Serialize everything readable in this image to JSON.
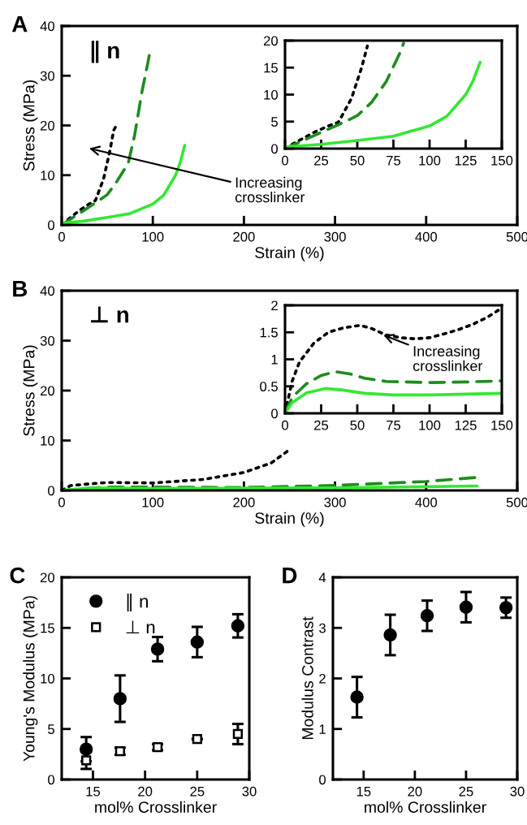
{
  "chart_data": [
    {
      "type": "line",
      "xlabel": "Strain (%)",
      "ylabel": "Stress (MPa)",
      "xlim": [
        0,
        500
      ],
      "ylim": [
        0,
        40
      ],
      "xticks": [
        0,
        100,
        200,
        300,
        400,
        500
      ],
      "yticks": [
        0,
        10,
        20,
        30,
        40
      ],
      "annotations": [
        "A",
        "∥ n",
        "Increasing\ncrosslinker"
      ],
      "series": [
        {
          "color": "#000000",
          "line_style": "dotted",
          "x": [
            0,
            5,
            20,
            30,
            37,
            46,
            53,
            57,
            60
          ],
          "values": [
            0,
            0.8,
            3,
            4.2,
            4.9,
            9.3,
            15,
            19,
            20
          ]
        },
        {
          "color": "#1e8c1e",
          "line_style": "dashed",
          "x": [
            0,
            10,
            25,
            40,
            50,
            60,
            73,
            80,
            88,
            95,
            97
          ],
          "values": [
            0,
            1.2,
            3,
            4.8,
            6.1,
            8.6,
            12.4,
            18,
            26.7,
            33,
            35
          ]
        },
        {
          "color": "#33e833",
          "line_style": "solid",
          "x": [
            0,
            25,
            50,
            75,
            100,
            112,
            125,
            130,
            135
          ],
          "values": [
            0.3,
            0.8,
            1.5,
            2.3,
            4.2,
            6,
            10,
            12.5,
            16
          ]
        }
      ]
    },
    {
      "type": "line",
      "xlim": [
        0,
        150
      ],
      "ylim": [
        0,
        20
      ],
      "xticks": [
        0,
        25,
        50,
        75,
        100,
        125,
        150
      ],
      "yticks": [
        0,
        5,
        10,
        15,
        20
      ],
      "series": [
        {
          "color": "#000000",
          "line_style": "dotted",
          "x": [
            0,
            5,
            20,
            30,
            37,
            46,
            53,
            57
          ],
          "values": [
            0,
            0.8,
            3,
            4.2,
            4.9,
            9.3,
            15,
            19
          ]
        },
        {
          "color": "#1e8c1e",
          "line_style": "dashed",
          "x": [
            0,
            10,
            25,
            40,
            50,
            60,
            70,
            80,
            82
          ],
          "values": [
            0,
            1.2,
            3,
            4.8,
            6.1,
            8.6,
            12.4,
            18,
            19.5
          ]
        },
        {
          "color": "#33e833",
          "line_style": "solid",
          "x": [
            0,
            25,
            50,
            75,
            100,
            112,
            125,
            130,
            135
          ],
          "values": [
            0.3,
            0.8,
            1.5,
            2.3,
            4.2,
            6,
            10,
            12.5,
            16
          ]
        }
      ]
    },
    {
      "type": "line",
      "xlabel": "Strain (%)",
      "ylabel": "Stress (MPa)",
      "xlim": [
        0,
        500
      ],
      "ylim": [
        0,
        40
      ],
      "xticks": [
        0,
        100,
        200,
        300,
        400,
        500
      ],
      "yticks": [
        0,
        10,
        20,
        30,
        40
      ],
      "annotations": [
        "B",
        "⊥ n"
      ],
      "series": [
        {
          "color": "#000000",
          "line_style": "dotted",
          "x": [
            0,
            10,
            50,
            100,
            155,
            200,
            230,
            251
          ],
          "values": [
            0,
            1,
            1.6,
            1.5,
            2.2,
            3.6,
            5.5,
            8.3
          ]
        },
        {
          "color": "#1e8c1e",
          "line_style": "dashed",
          "x": [
            0,
            50,
            200,
            300,
            400,
            455
          ],
          "values": [
            0,
            0.7,
            0.6,
            1,
            1.8,
            2.6
          ]
        },
        {
          "color": "#33e833",
          "line_style": "solid",
          "x": [
            0,
            30,
            100,
            300,
            456
          ],
          "values": [
            0,
            0.5,
            0.4,
            0.5,
            0.9
          ]
        }
      ]
    },
    {
      "type": "line",
      "xlim": [
        0,
        150
      ],
      "ylim": [
        0,
        2
      ],
      "xticks": [
        0,
        25,
        50,
        75,
        100,
        125,
        150
      ],
      "yticks": [
        0,
        0.5,
        1,
        1.5,
        2
      ],
      "annotations": [
        {
          "text": "Increasing\ncrosslinker",
          "x": 68,
          "y": 1.45
        }
      ],
      "series": [
        {
          "color": "#000000",
          "line_style": "dotted",
          "x": [
            0,
            5,
            10,
            20,
            30,
            40,
            52,
            60,
            70,
            80,
            90,
            100,
            110,
            120,
            130,
            140,
            150
          ],
          "values": [
            0,
            0.6,
            0.95,
            1.3,
            1.5,
            1.58,
            1.63,
            1.57,
            1.45,
            1.4,
            1.38,
            1.4,
            1.47,
            1.55,
            1.65,
            1.78,
            1.95
          ]
        },
        {
          "color": "#1e8c1e",
          "line_style": "dashed",
          "x": [
            0,
            5,
            15,
            25,
            35,
            45,
            55,
            70,
            100,
            125,
            150
          ],
          "values": [
            0,
            0.3,
            0.55,
            0.7,
            0.77,
            0.73,
            0.65,
            0.59,
            0.57,
            0.58,
            0.6
          ]
        },
        {
          "color": "#33e833",
          "line_style": "solid",
          "x": [
            0,
            5,
            15,
            28,
            40,
            55,
            75,
            100,
            150
          ],
          "values": [
            0,
            0.2,
            0.38,
            0.46,
            0.43,
            0.37,
            0.34,
            0.34,
            0.37
          ]
        }
      ]
    },
    {
      "type": "scatter",
      "xlabel": "mol% Crosslinker",
      "ylabel": "Young's Modulus (MPa)",
      "xlim": [
        12,
        30
      ],
      "ylim": [
        0,
        20
      ],
      "xticks": [
        15,
        20,
        25,
        30
      ],
      "yticks": [
        0,
        5,
        10,
        15,
        20
      ],
      "legend": "top left",
      "annotations": [
        "C"
      ],
      "series": [
        {
          "name": "∥ n",
          "color": "#000000",
          "marker": "circle",
          "x": [
            14.35,
            17.6,
            21.2,
            25.0,
            28.9
          ],
          "values": [
            3.0,
            8.0,
            12.9,
            13.6,
            15.2
          ],
          "errors": [
            1.2,
            2.3,
            1.2,
            1.5,
            1.15
          ]
        },
        {
          "name": "⊥ n",
          "color": "#000000",
          "marker": "square",
          "x": [
            14.35,
            17.6,
            21.2,
            25.0,
            28.9
          ],
          "values": [
            1.9,
            2.8,
            3.2,
            4.0,
            4.5
          ],
          "errors": [
            0.85,
            0.35,
            0.3,
            null,
            1.0
          ]
        }
      ]
    },
    {
      "type": "scatter",
      "xlabel": "mol% Crosslinker",
      "ylabel": "Modulus Contrast",
      "xlim": [
        12,
        30
      ],
      "ylim": [
        0,
        4
      ],
      "xticks": [
        15,
        20,
        25,
        30
      ],
      "yticks": [
        0,
        1,
        2,
        3,
        4
      ],
      "annotations": [
        "D"
      ],
      "series": [
        {
          "color": "#000000",
          "marker": "circle",
          "x": [
            14.35,
            17.6,
            21.2,
            25.0,
            28.9
          ],
          "values": [
            1.63,
            2.86,
            3.24,
            3.41,
            3.4
          ],
          "errors": [
            0.4,
            0.4,
            0.3,
            0.3,
            0.2
          ]
        }
      ]
    }
  ]
}
